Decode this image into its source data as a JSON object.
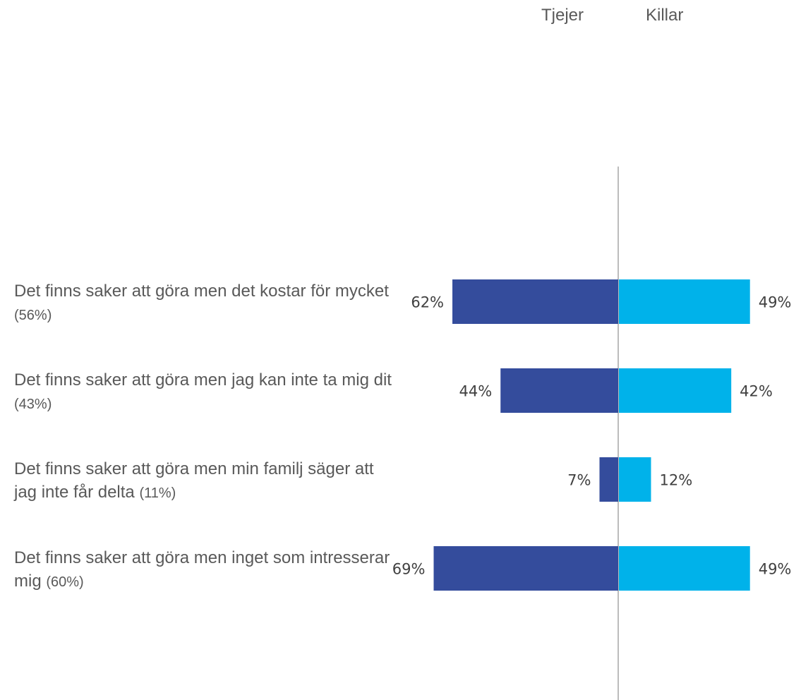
{
  "chart_data": {
    "type": "bar",
    "orientation": "horizontal-diverging",
    "series": [
      {
        "name": "Tjejer",
        "values": [
          62,
          44,
          7,
          69
        ],
        "labels": [
          "62%",
          "44%",
          "7%",
          "69%"
        ],
        "color": "#344c9c"
      },
      {
        "name": "Killar",
        "values": [
          49,
          42,
          12,
          49
        ],
        "labels": [
          "49%",
          "42%",
          "12%",
          "49%"
        ],
        "color": "#00b2ea"
      }
    ],
    "categories": [
      {
        "text": "Det finns saker att göra men det kostar för mycket",
        "total": "(56%)"
      },
      {
        "text": "Det finns saker att göra men jag kan inte ta mig dit",
        "total": "(43%)"
      },
      {
        "text": "Det finns saker att göra men min familj säger att jag inte får delta",
        "total": "(11%)"
      },
      {
        "text": "Det finns saker att göra men inget som intresserar mig",
        "total": "(60%)"
      }
    ],
    "xlim": [
      -100,
      100
    ],
    "grid": false,
    "legend": "top-right",
    "center_line_color": "#a6a6a6"
  }
}
